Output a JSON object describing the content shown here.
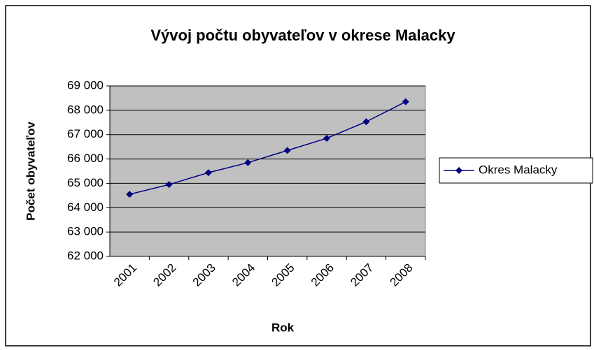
{
  "chart_data": {
    "type": "line",
    "title": "Vývoj počtu obyvateľov v okrese Malacky",
    "x_label": "Rok",
    "y_label": "Počet obyvateľov",
    "categories": [
      "2001",
      "2002",
      "2003",
      "2004",
      "2005",
      "2006",
      "2007",
      "2008"
    ],
    "series": [
      {
        "name": "Okres Malacky",
        "color": "#000080",
        "values": [
          64550,
          64950,
          65440,
          65850,
          66350,
          66850,
          67530,
          68350
        ]
      }
    ],
    "ylim": [
      62000,
      69000
    ],
    "yticks": [
      {
        "value": 62000,
        "label": "62 000"
      },
      {
        "value": 63000,
        "label": "63 000"
      },
      {
        "value": 64000,
        "label": "64 000"
      },
      {
        "value": 65000,
        "label": "65 000"
      },
      {
        "value": 66000,
        "label": "66 000"
      },
      {
        "value": 67000,
        "label": "67 000"
      },
      {
        "value": 68000,
        "label": "68 000"
      },
      {
        "value": 69000,
        "label": "69 000"
      }
    ],
    "grid": true,
    "legend": "right",
    "plot_background": "#c0c0c0"
  }
}
